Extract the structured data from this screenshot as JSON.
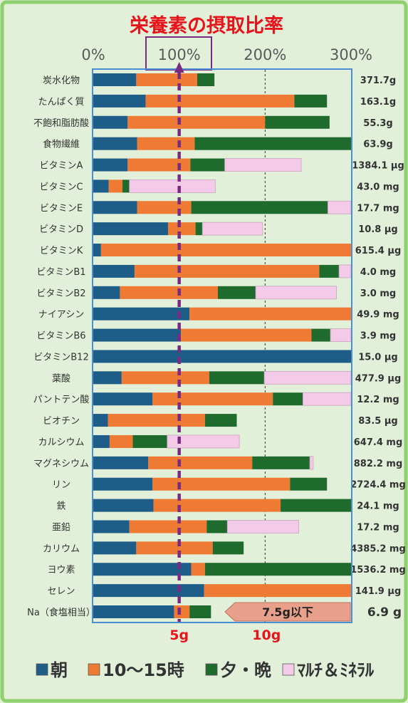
{
  "colors": {
    "background": "#e2f0d9",
    "border": "#8ed06e",
    "title": "#e8141b",
    "frame": "#4a8fd6",
    "reference_100": "#7b2a82",
    "reference_200": "#333333",
    "bottom_ticks": "#e8141b",
    "annotation_fill": "#e9a08a",
    "annotation_stroke": "#b9705f"
  },
  "chart_data": {
    "type": "bar",
    "orientation": "horizontal",
    "stacked": true,
    "title": "栄養素の摂取比率",
    "xlim": [
      0,
      300
    ],
    "grid": false,
    "legend": "bottom",
    "x_ticks": [
      {
        "label": "0%",
        "value": 0
      },
      {
        "label": "100%",
        "value": 100
      },
      {
        "label": "200%",
        "value": 200
      },
      {
        "label": "300%",
        "value": 300
      }
    ],
    "highlighted_tick": 100,
    "x_ticks_bottom": [
      {
        "label": "5g",
        "value": 100
      },
      {
        "label": "10g",
        "value": 200
      }
    ],
    "reference_lines": [
      100,
      200
    ],
    "categories": [
      "炭水化物",
      "たんぱく質",
      "不飽和脂肪酸",
      "食物繊維",
      "ビタミンA",
      "ビタミンC",
      "ビタミンE",
      "ビタミンD",
      "ビタミンK",
      "ビタミンB1",
      "ビタミンB2",
      "ナイアシン",
      "ビタミンB6",
      "ビタミンB12",
      "葉酸",
      "パントテン酸",
      "ビオチン",
      "カルシウム",
      "マグネシウム",
      "リン",
      "鉄",
      "亜鉛",
      "カリウム",
      "ヨウ素",
      "セレン",
      "Na（食塩相当）"
    ],
    "series": [
      {
        "name": "朝",
        "color": "#1d5d88",
        "values": [
          50,
          61,
          40,
          51,
          40,
          18,
          51,
          87,
          9,
          48,
          31,
          112,
          102,
          300,
          33,
          69,
          17,
          19,
          64,
          69,
          70,
          42,
          50,
          114,
          129,
          94
        ]
      },
      {
        "name": "10～15時",
        "color": "#ee7a33",
        "values": [
          71,
          173,
          160,
          67,
          73,
          16,
          63,
          32,
          291,
          215,
          114,
          188,
          152,
          0,
          102,
          140,
          113,
          27,
          121,
          160,
          148,
          90,
          89,
          16,
          171,
          18
        ]
      },
      {
        "name": "夕・晩",
        "color": "#1f6b2e",
        "values": [
          20,
          38,
          75,
          182,
          40,
          8,
          159,
          8,
          0,
          23,
          44,
          0,
          22,
          0,
          64,
          35,
          37,
          40,
          67,
          43,
          82,
          24,
          36,
          170,
          0,
          25
        ]
      },
      {
        "name": "ﾏﾙﾁ＆ﾐﾈﾗﾙ",
        "color": "#f3cbe8",
        "values": [
          0,
          0,
          0,
          0,
          89,
          100,
          27,
          70,
          0,
          14,
          94,
          0,
          24,
          0,
          101,
          56,
          0,
          84,
          4,
          0,
          0,
          83,
          0,
          0,
          0,
          0
        ]
      }
    ],
    "value_labels": [
      "371.7g",
      "163.1g",
      "55.3g",
      "63.9g",
      "1384.1 μg",
      "43.0 mg",
      "17.7 mg",
      "10.8 μg",
      "615.4 μg",
      "4.0 mg",
      "3.0 mg",
      "49.9 mg",
      "3.9 mg",
      "15.0 μg",
      "477.9 μg",
      "12.2 mg",
      "83.5 μg",
      "647.4 mg",
      "882.2 mg",
      "2724.4 mg",
      "24.1 mg",
      "17.2 mg",
      "4385.2 mg",
      "1536.2 mg",
      "141.9 μg",
      "6.9 g"
    ],
    "annotation": {
      "text": "7.5g以下",
      "category_index": 25
    }
  }
}
